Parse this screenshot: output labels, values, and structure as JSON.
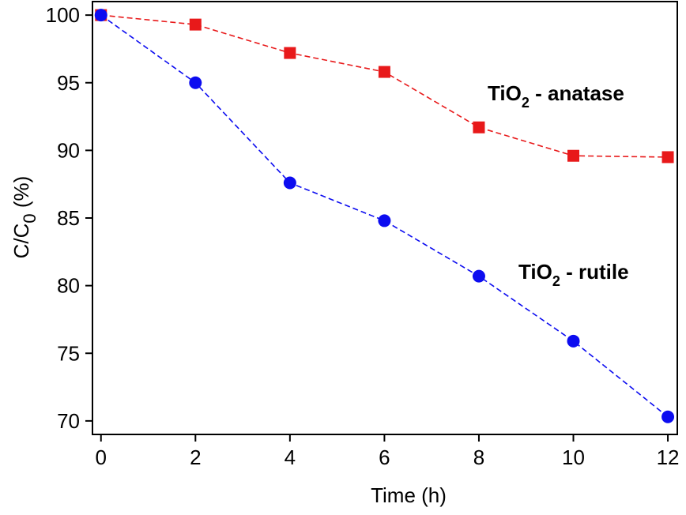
{
  "chart_data": {
    "type": "line",
    "x_label": "Time (h)",
    "y_label": [
      "C/C",
      "0",
      " (%)"
    ],
    "x": [
      0,
      2,
      4,
      6,
      8,
      10,
      12
    ],
    "series": [
      {
        "name": [
          "TiO",
          "2",
          " - anatase"
        ],
        "color": "#e8191a",
        "marker": "square",
        "values": [
          100,
          99.3,
          97.2,
          95.8,
          91.7,
          89.6,
          89.5
        ]
      },
      {
        "name": [
          "TiO",
          "2",
          " - rutile"
        ],
        "color": "#0c0cf0",
        "marker": "circle",
        "values": [
          100,
          95,
          87.6,
          84.8,
          80.7,
          75.9,
          70.3
        ]
      }
    ],
    "xlim": [
      -0.18,
      12.2
    ],
    "ylim": [
      69,
      101
    ],
    "xticks": [
      0,
      2,
      4,
      6,
      8,
      10,
      12
    ],
    "yticks": [
      70,
      75,
      80,
      85,
      90,
      95,
      100
    ]
  }
}
